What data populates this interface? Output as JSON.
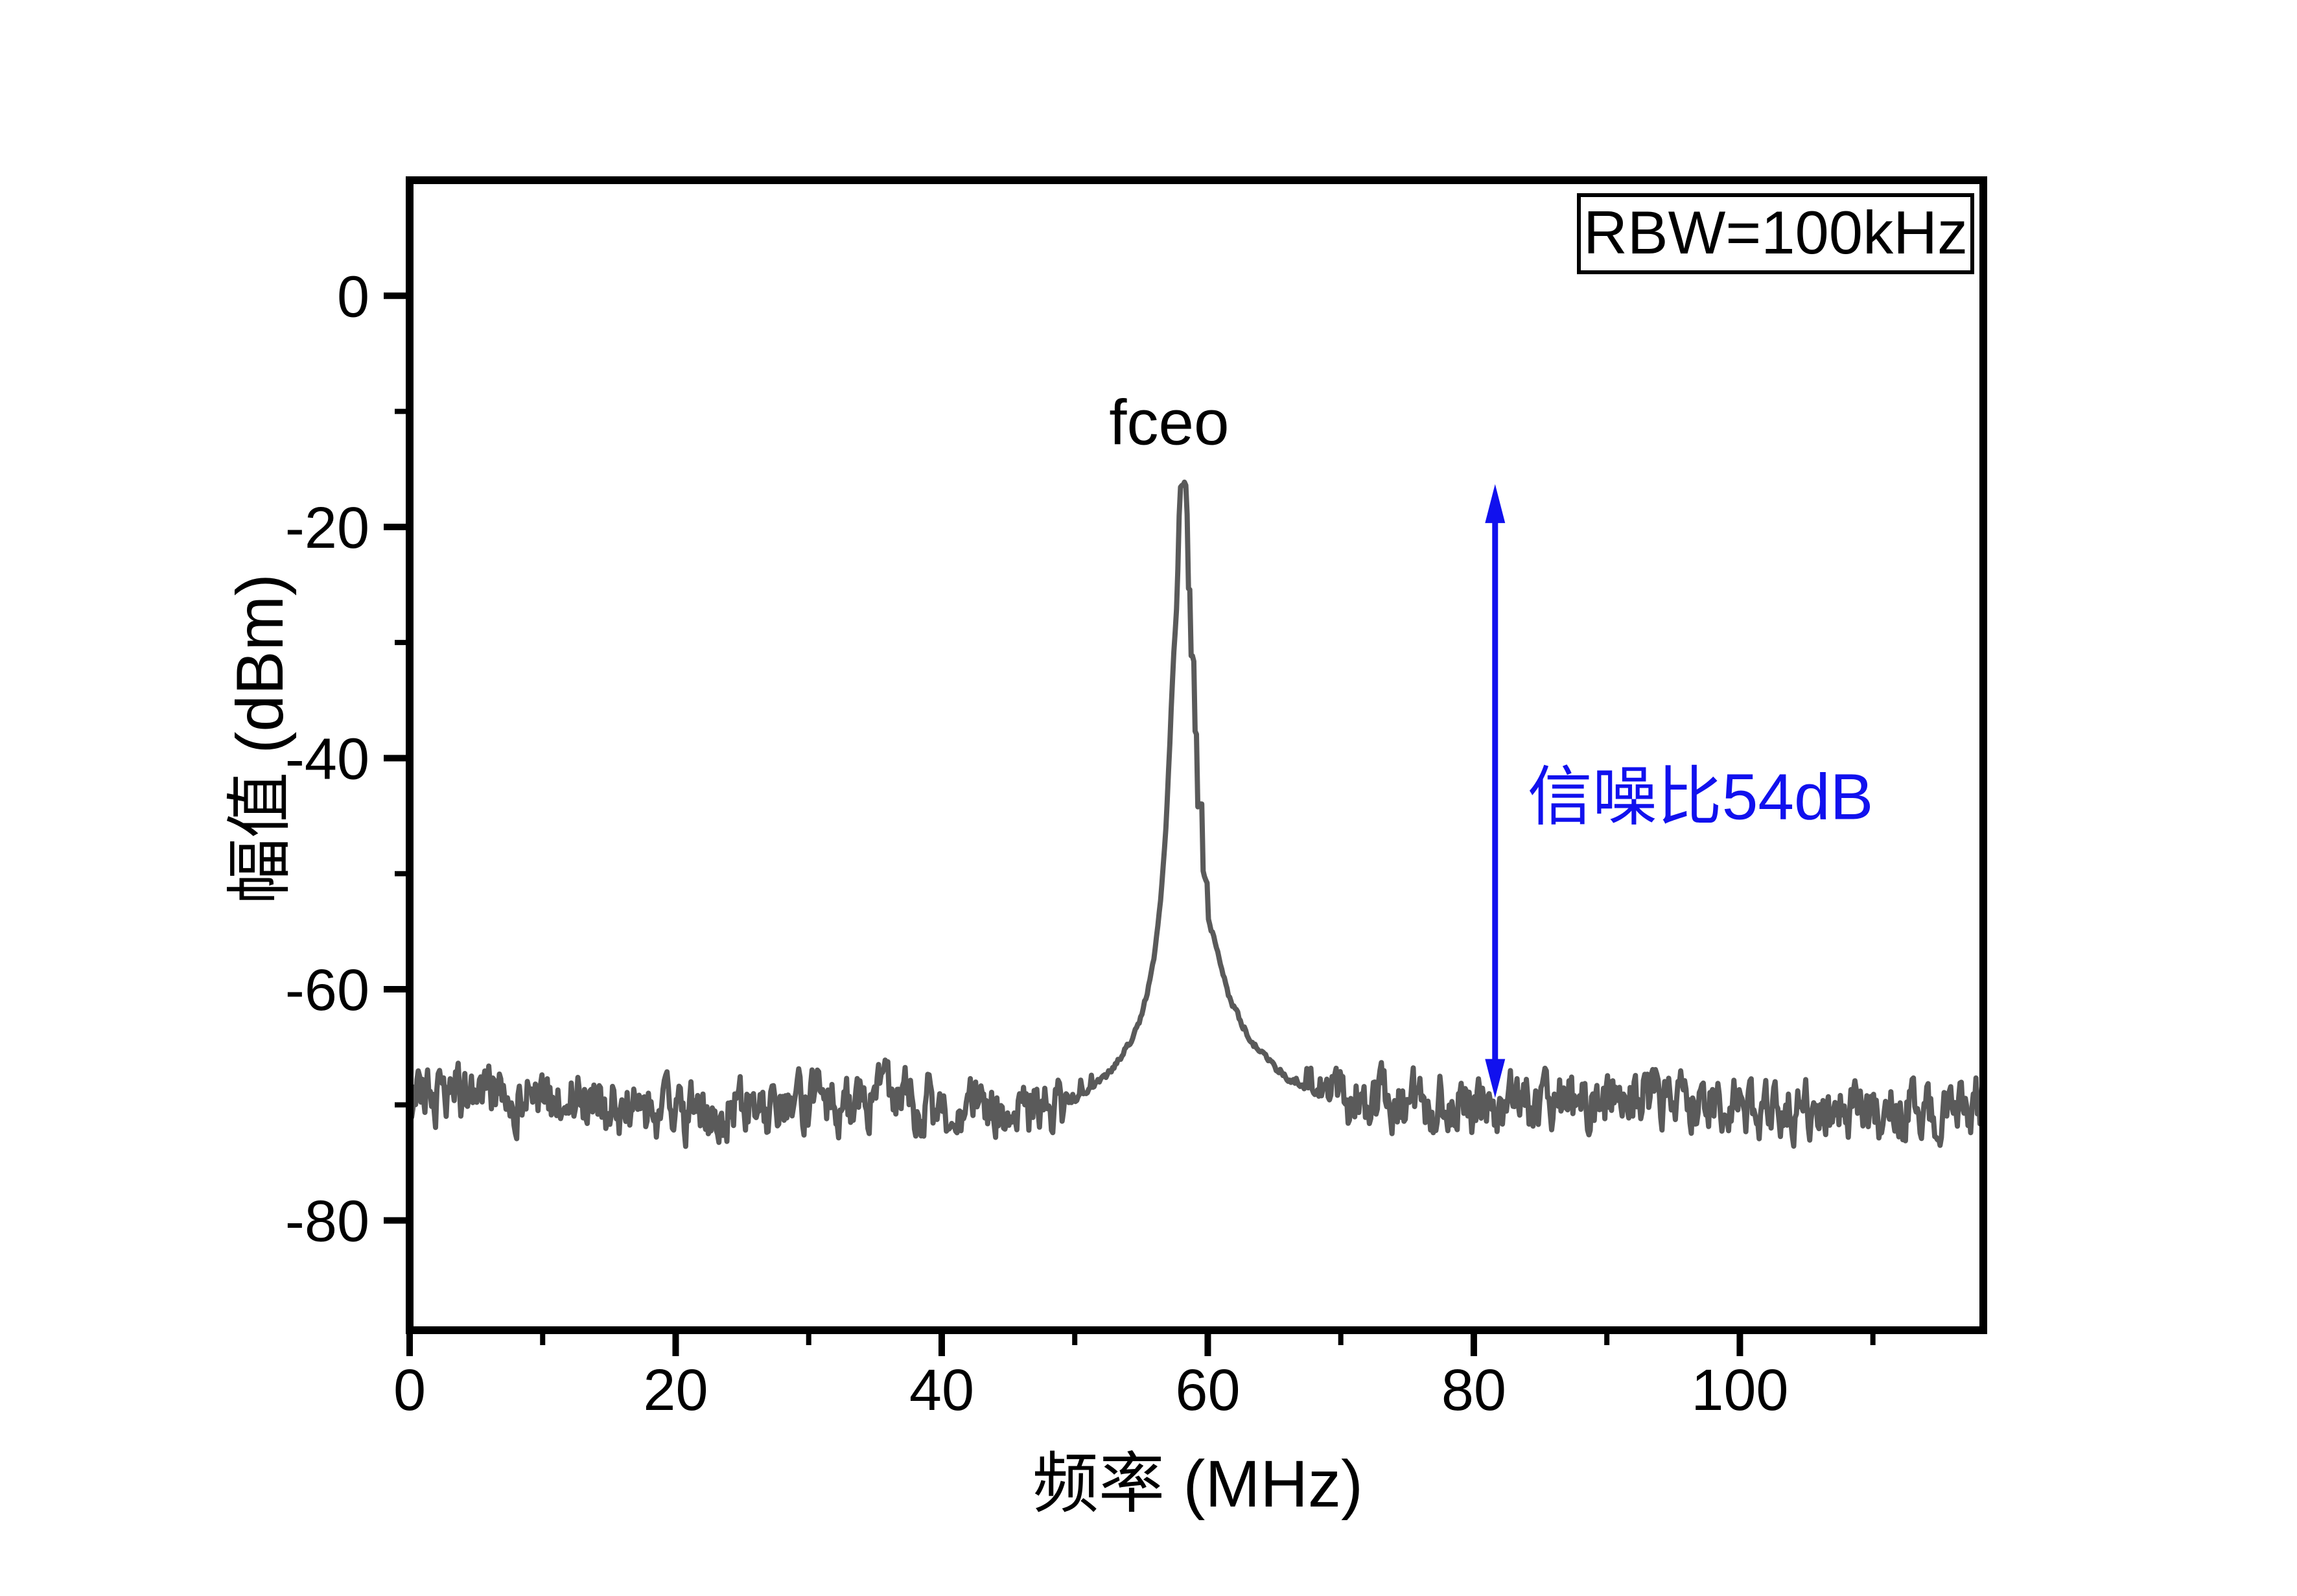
{
  "chart_data": {
    "type": "line",
    "title": "",
    "xlabel_cjk": "频率",
    "xlabel_unit": " (MHz)",
    "ylabel_cjk": "幅值",
    "ylabel_unit": " (dBm)",
    "xlim": [
      0,
      118.3
    ],
    "ylim": [
      -89.5,
      10
    ],
    "x_ticks": [
      0,
      20,
      40,
      60,
      80,
      100
    ],
    "x_minor_ticks": [
      10,
      30,
      50,
      70,
      90,
      110
    ],
    "y_ticks": [
      0,
      -20,
      -40,
      -60,
      -80
    ],
    "y_minor_ticks": [
      -10,
      -30,
      -50,
      -70
    ],
    "grid": false,
    "frame_color": "#000000",
    "background": "#ffffff",
    "series": [
      {
        "name": "rf-spectrum-trace",
        "color": "#5a5a5a",
        "noise_floor_dbm": -69.8,
        "noise_jitter_db": 2.6,
        "peak": {
          "freq_mhz": 58,
          "amplitude_dbm": -16.2,
          "label": "fceo",
          "snr_db": 54
        },
        "envelope_points_mhz_dbm": [
          [
            49.5,
            -69.8
          ],
          [
            51.0,
            -68.8
          ],
          [
            52.3,
            -67.6
          ],
          [
            53.3,
            -66.2
          ],
          [
            54.2,
            -64.3
          ],
          [
            55.0,
            -62.3
          ],
          [
            55.6,
            -59.6
          ],
          [
            56.0,
            -57.0
          ],
          [
            56.35,
            -53.5
          ],
          [
            56.65,
            -49.5
          ],
          [
            56.9,
            -45.0
          ],
          [
            57.1,
            -40.0
          ],
          [
            57.3,
            -34.5
          ],
          [
            57.5,
            -30.0
          ],
          [
            57.65,
            -27.0
          ],
          [
            57.75,
            -23.5
          ],
          [
            57.85,
            -19.0
          ],
          [
            57.92,
            -16.4
          ],
          [
            58.0,
            -16.2
          ],
          [
            58.38,
            -16.3
          ],
          [
            58.45,
            -19.0
          ],
          [
            58.5,
            -25.2
          ],
          [
            58.7,
            -25.6
          ],
          [
            58.75,
            -31.1
          ],
          [
            58.95,
            -31.5
          ],
          [
            59.0,
            -37.4
          ],
          [
            59.2,
            -37.8
          ],
          [
            59.25,
            -43.9
          ],
          [
            59.55,
            -44.3
          ],
          [
            59.6,
            -49.9
          ],
          [
            59.95,
            -50.4
          ],
          [
            60.05,
            -53.5
          ],
          [
            60.45,
            -55.5
          ],
          [
            60.95,
            -58.0
          ],
          [
            61.55,
            -60.3
          ],
          [
            62.35,
            -62.6
          ],
          [
            63.35,
            -64.6
          ],
          [
            64.75,
            -66.4
          ],
          [
            66.25,
            -67.8
          ],
          [
            68.25,
            -69.0
          ],
          [
            70.5,
            -69.8
          ]
        ]
      }
    ],
    "annotations": {
      "rbw_label": {
        "text": "RBW=100kHz"
      },
      "peak_label": {
        "text": "fceo",
        "x_mhz": 57.1,
        "y_dbm": -11
      },
      "snr_label": {
        "text_cjk": "信噪比",
        "text_value": "54dB",
        "color": "#1111ee",
        "x_mhz": 84,
        "y_dbm": -43.4
      },
      "snr_arrow": {
        "x_mhz": 81.6,
        "top_dbm": -16.3,
        "bottom_dbm": -69.4,
        "snr_db": 54,
        "color": "#1111ee"
      }
    }
  }
}
